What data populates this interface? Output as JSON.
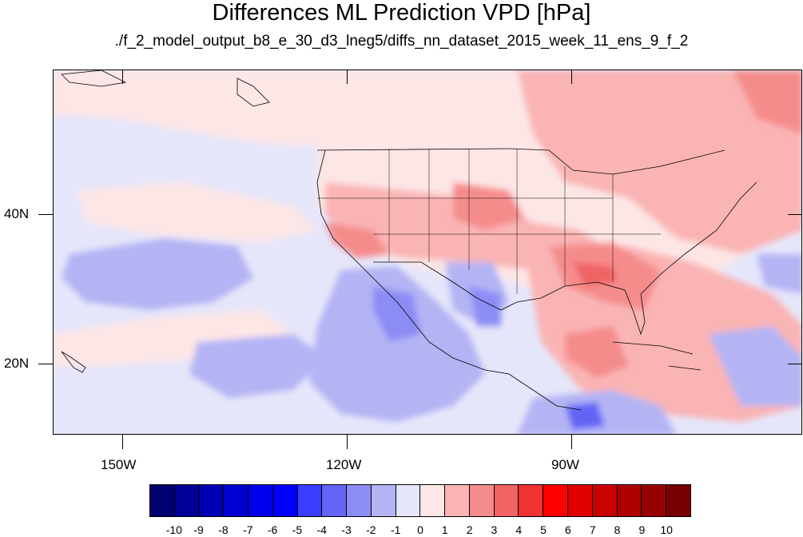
{
  "title": "Differences ML Prediction VPD [hPa]",
  "subtitle": "./f_2_model_output_b8_e_30_d3_lneg5/diffs_nn_dataset_2015_week_11_ens_9_f_2",
  "map": {
    "lat_labels": [
      "40N",
      "20N"
    ],
    "lon_labels": [
      "150W",
      "120W",
      "90W"
    ]
  },
  "colorbar": {
    "labels": [
      "-10",
      "-9",
      "-8",
      "-7",
      "-6",
      "-5",
      "-4",
      "-3",
      "-2",
      "-1",
      "0",
      "1",
      "2",
      "3",
      "4",
      "5",
      "6",
      "7",
      "8",
      "9",
      "10"
    ],
    "colors": [
      "#00006e",
      "#000096",
      "#0000b4",
      "#0000d2",
      "#0000eb",
      "#0000ff",
      "#3c3cff",
      "#6464f5",
      "#8c8cf5",
      "#b4b4f5",
      "#e6e6fa",
      "#fde6e6",
      "#fab4b4",
      "#f58c8c",
      "#f06464",
      "#f03232",
      "#ff0000",
      "#e10000",
      "#c80000",
      "#af0000",
      "#960000",
      "#780000"
    ]
  }
}
